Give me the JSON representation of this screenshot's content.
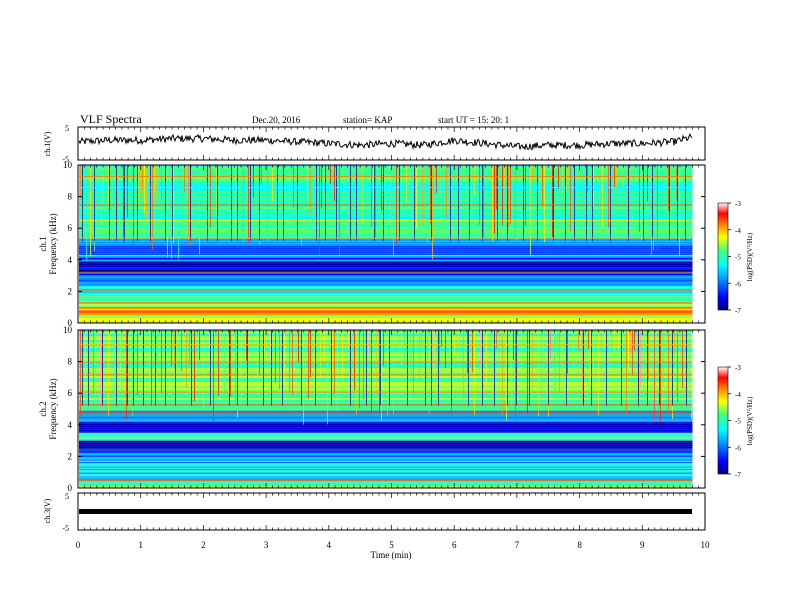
{
  "header": {
    "title": "VLF Spectra",
    "date": "Dec.20, 2016",
    "station": "station= KAP",
    "start": "start  UT  =   15: 20: 1"
  },
  "colormap": {
    "stops": [
      "#000080",
      "#0000ff",
      "#00a0ff",
      "#00ffff",
      "#40ff80",
      "#ffff00",
      "#ff8000",
      "#ff0000",
      "#ffffff"
    ]
  },
  "chart_data": [
    {
      "type": "line",
      "panel": "ch1-waveform",
      "ylabel": "ch.1(V)",
      "ylim": [
        -5,
        5
      ],
      "yticks": [
        "5",
        "-5"
      ],
      "xlim": [
        0,
        10
      ],
      "series": [
        {
          "x": [
            0,
            0.5,
            1,
            1.5,
            2,
            2.5,
            3,
            3.5,
            4,
            4.5,
            5,
            5.5,
            6,
            6.5,
            7,
            7.5,
            8,
            8.5,
            9,
            9.5,
            9.8
          ],
          "values": [
            0.5,
            1,
            1,
            1.5,
            1.5,
            1,
            1,
            0.5,
            0,
            -0.5,
            0,
            -0.5,
            1,
            0,
            -1,
            -0.5,
            -0.5,
            0,
            0,
            0.5,
            2
          ]
        }
      ]
    },
    {
      "type": "heatmap",
      "panel": "ch1-spectrogram",
      "ylabel_top": "ch.1",
      "ylabel": "Frequency  (kHz)",
      "ylim": [
        0,
        10
      ],
      "yticks": [
        "0",
        "2",
        "4",
        "6",
        "8",
        "10"
      ],
      "xlim": [
        0,
        9.8
      ],
      "colorbar": {
        "label": "log(PSD)(V²/Hz)",
        "range": [
          -7,
          -3
        ],
        "ticks": [
          "-3",
          "-4",
          "-5",
          "-6",
          "-7"
        ]
      },
      "bands": [
        {
          "f": [
            0.0,
            0.5
          ],
          "v": -4.8
        },
        {
          "f": [
            0.5,
            1.0
          ],
          "v": -4.2
        },
        {
          "f": [
            1.0,
            1.8
          ],
          "v": -5.0
        },
        {
          "f": [
            1.8,
            2.4
          ],
          "v": -5.6
        },
        {
          "f": [
            2.4,
            3.0
          ],
          "v": -6.0
        },
        {
          "f": [
            3.0,
            3.9
          ],
          "v": -6.7
        },
        {
          "f": [
            3.9,
            5.4
          ],
          "v": -6.2
        },
        {
          "f": [
            5.4,
            10.0
          ],
          "v": -5.2
        }
      ],
      "lines_khz": [
        0.8,
        1.0,
        1.3,
        2.1,
        2.4,
        3.2,
        4.3,
        5.4,
        6.5,
        7.5,
        8.6,
        9.3
      ]
    },
    {
      "type": "heatmap",
      "panel": "ch2-spectrogram",
      "ylabel_top": "ch.2",
      "ylabel": "Frequency  (kHz)",
      "ylim": [
        0,
        10
      ],
      "yticks": [
        "0",
        "2",
        "4",
        "6",
        "8",
        "10"
      ],
      "xlim": [
        0,
        9.8
      ],
      "colorbar": {
        "label": "log(PSD)(V²/Hz)",
        "range": [
          -7,
          -3
        ],
        "ticks": [
          "-3",
          "-4",
          "-5",
          "-6",
          "-7"
        ]
      },
      "bands": [
        {
          "f": [
            0.0,
            0.5
          ],
          "v": -4.9
        },
        {
          "f": [
            0.5,
            1.5
          ],
          "v": -5.6
        },
        {
          "f": [
            1.5,
            2.2
          ],
          "v": -5.9
        },
        {
          "f": [
            2.2,
            3.0
          ],
          "v": -6.6
        },
        {
          "f": [
            3.0,
            3.5
          ],
          "v": -5.3
        },
        {
          "f": [
            3.5,
            4.2
          ],
          "v": -6.5
        },
        {
          "f": [
            4.2,
            4.9
          ],
          "v": -5.9
        },
        {
          "f": [
            4.9,
            10.0
          ],
          "v": -5.0
        }
      ],
      "lines_khz": [
        0.5,
        1.2,
        1.7,
        3.2,
        4.8,
        5.3,
        6.1,
        7.2,
        8.0,
        9.1
      ]
    },
    {
      "type": "line",
      "panel": "ch3-waveform",
      "ylabel": "ch.3(V)",
      "ylim": [
        -5,
        5
      ],
      "yticks": [
        "5",
        "-5"
      ],
      "xlim": [
        0,
        10
      ],
      "series": [
        {
          "x": [
            0,
            9.8
          ],
          "values": [
            0,
            0
          ]
        }
      ]
    }
  ],
  "x_axis": {
    "label": "Time  (min)",
    "ticks": [
      "0",
      "1",
      "2",
      "3",
      "4",
      "5",
      "6",
      "7",
      "8",
      "9",
      "10"
    ]
  }
}
